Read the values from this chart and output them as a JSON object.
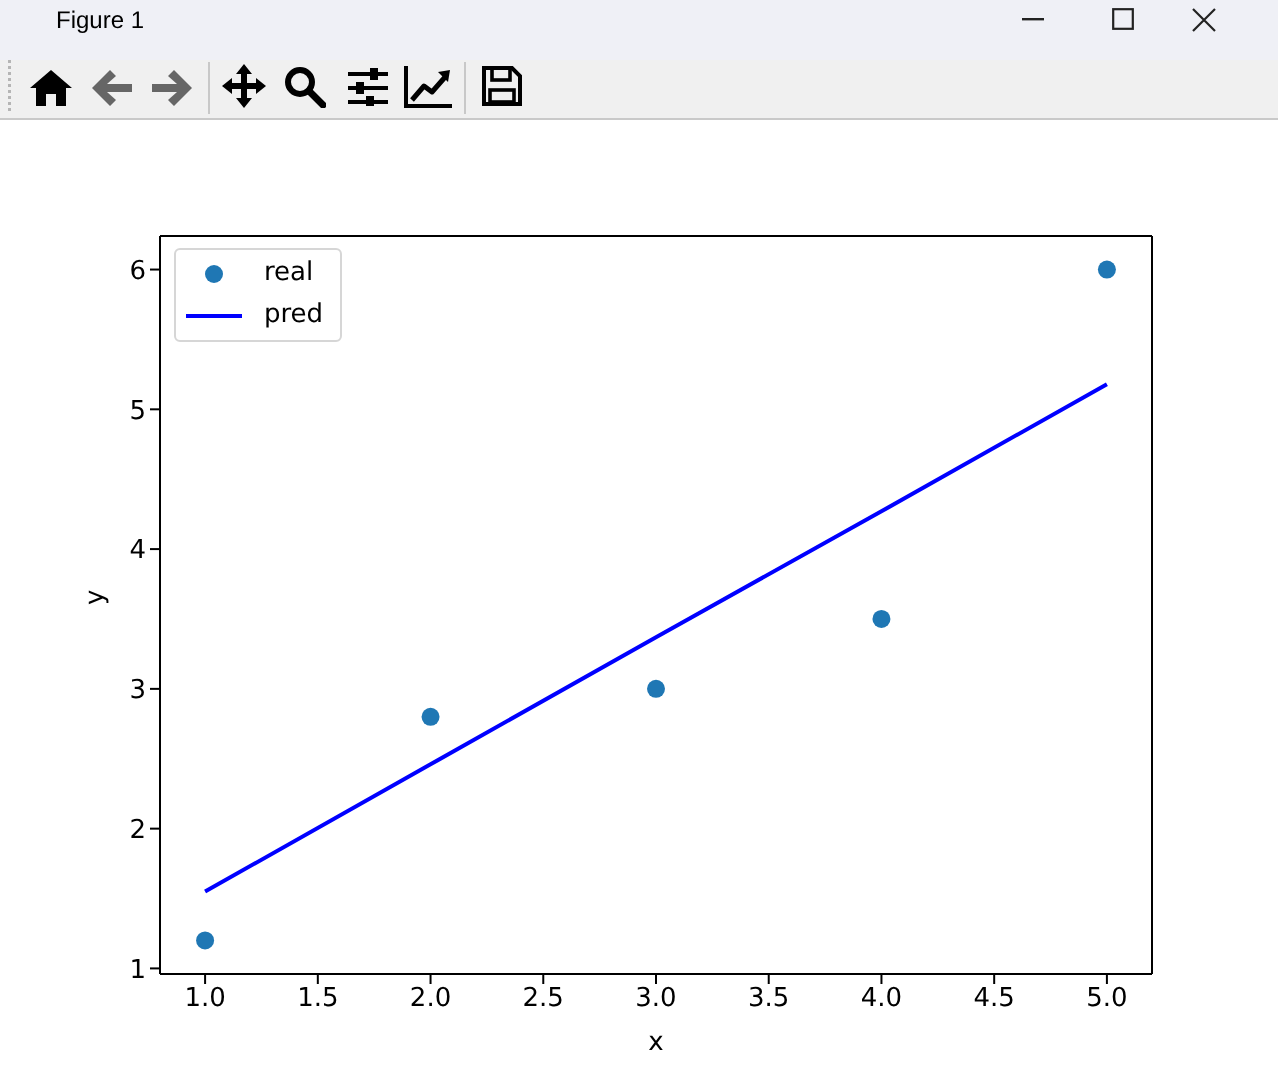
{
  "chart_data": {
    "type": "scatter",
    "annotations": [
      "Figure 1"
    ],
    "xlabel": "x",
    "ylabel": "y",
    "x": [
      1,
      2,
      3,
      4,
      5
    ],
    "series": [
      {
        "name": "real",
        "color": "#1f77b4",
        "values": [
          1.2,
          2.8,
          3.0,
          3.5,
          6.0
        ],
        "marker": "circle"
      },
      {
        "name": "pred",
        "type": "line",
        "color": "#0000ff",
        "values": [
          1.55,
          2.46,
          3.37,
          4.27,
          5.18
        ],
        "marker": "none",
        "line_style": "solid"
      }
    ],
    "xlim": [
      0.8,
      5.2
    ],
    "ylim": [
      0.96,
      6.24
    ],
    "xticks": [
      {
        "value": 1,
        "label": "1.0"
      },
      {
        "value": 1.5,
        "label": "1.5"
      },
      {
        "value": 2,
        "label": "2.0"
      },
      {
        "value": 2.5,
        "label": "2.5"
      },
      {
        "value": 3,
        "label": "3.0"
      },
      {
        "value": 3.5,
        "label": "3.5"
      },
      {
        "value": 4,
        "label": "4.0"
      },
      {
        "value": 4.5,
        "label": "4.5"
      },
      {
        "value": 5,
        "label": "5.0"
      }
    ],
    "yticks": [
      1,
      2,
      3,
      4,
      5,
      6
    ],
    "legend": "top left"
  }
}
